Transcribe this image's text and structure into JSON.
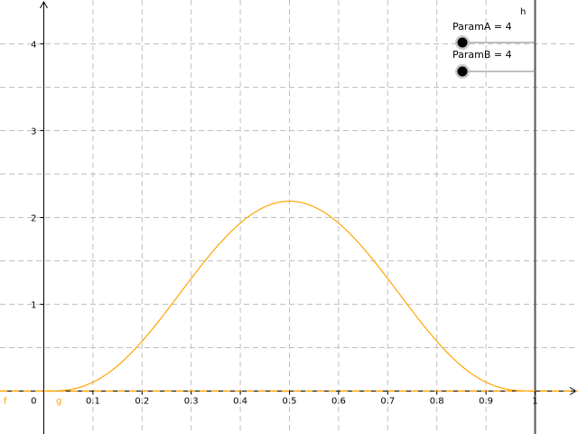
{
  "chart_data": {
    "type": "line",
    "title": "",
    "xlabel": "",
    "ylabel": "",
    "xlim": [
      -0.08,
      1.08
    ],
    "ylim": [
      -0.3,
      4.45
    ],
    "x_ticks": [
      0.1,
      0.2,
      0.3,
      0.4,
      0.5,
      0.6,
      0.7,
      0.8,
      0.9,
      1
    ],
    "x_tick_labels": [
      "0.1",
      "0.2",
      "0.3",
      "0.4",
      "0.5",
      "0.6",
      "0.7",
      "0.8",
      "0.9",
      "1"
    ],
    "y_ticks": [
      1,
      2,
      3,
      4
    ],
    "y_tick_labels": [
      "1",
      "2",
      "3",
      "4"
    ],
    "origin_label": "0",
    "grid": true,
    "series": [
      {
        "name": "g",
        "color": "#ffa500",
        "style": "solid",
        "formula": "beta density with ParamA = 4, ParamB = 4",
        "x": [
          0,
          0.1,
          0.2,
          0.3,
          0.4,
          0.5,
          0.6,
          0.7,
          0.8,
          0.9,
          1
        ],
        "y": [
          0,
          0.1,
          0.58,
          1.36,
          1.94,
          2.19,
          1.94,
          1.36,
          0.58,
          0.1,
          0
        ]
      },
      {
        "name": "f",
        "color": "#ffa500",
        "style": "dashed",
        "x": [
          -0.08,
          1.08
        ],
        "y": [
          0,
          0
        ]
      }
    ],
    "vertical_line": {
      "name": "h",
      "x": 1,
      "color": "#555555"
    }
  },
  "sliders": [
    {
      "caption": "ParamA = 4",
      "name": "ParamA",
      "value": 4
    },
    {
      "caption": "ParamB = 4",
      "name": "ParamB",
      "value": 4
    }
  ],
  "labels": {
    "f": "f",
    "g": "g",
    "h": "h"
  },
  "colors": {
    "curve": "#ffa500",
    "grid": "#c0c0c0",
    "axis": "#000000",
    "line_h": "#555555"
  }
}
